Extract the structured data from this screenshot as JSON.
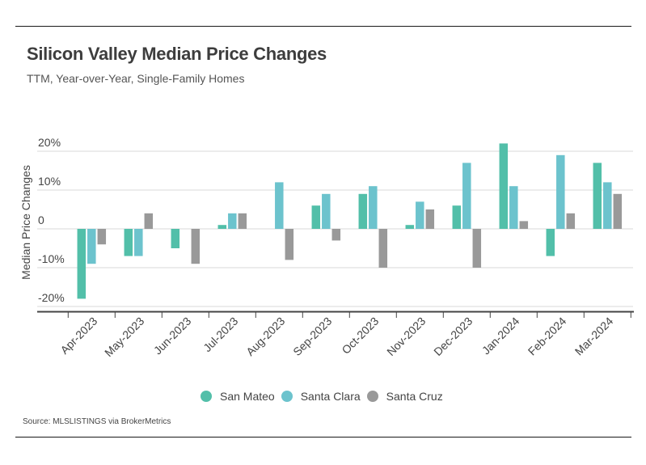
{
  "header": {
    "title": "Silicon Valley Median Price Changes",
    "subtitle": "TTM, Year-over-Year, Single-Family Homes"
  },
  "footer": {
    "source": "Source:  MLSLISTINGS via BrokerMetrics"
  },
  "chart_data": {
    "type": "bar",
    "title": "Silicon Valley Median Price Changes",
    "subtitle": "TTM, Year-over-Year, Single-Family Homes",
    "xlabel": "",
    "ylabel": "Median Price Changes",
    "ylim": [
      -20,
      20
    ],
    "yticks": [
      -20,
      -10,
      0,
      10,
      20
    ],
    "ytick_labels": [
      "-20%",
      "-10%",
      "0",
      "10%",
      "20%"
    ],
    "grid": true,
    "legend_position": "bottom-center",
    "categories": [
      "Apr-2023",
      "May-2023",
      "Jun-2023",
      "Jul-2023",
      "Aug-2023",
      "Sep-2023",
      "Oct-2023",
      "Nov-2023",
      "Dec-2023",
      "Jan-2024",
      "Feb-2024",
      "Mar-2024"
    ],
    "series": [
      {
        "name": "San Mateo",
        "color": "#52BFA9",
        "values": [
          -18,
          -7,
          -5,
          1,
          0,
          6,
          9,
          1,
          6,
          22,
          -7,
          17
        ]
      },
      {
        "name": "Santa Clara",
        "color": "#6CC3CD",
        "values": [
          -9,
          -7,
          0,
          4,
          12,
          9,
          11,
          7,
          17,
          11,
          19,
          12
        ]
      },
      {
        "name": "Santa Cruz",
        "color": "#999999",
        "values": [
          -4,
          4,
          -9,
          4,
          -8,
          -3,
          -10,
          5,
          -10,
          2,
          4,
          9
        ]
      }
    ]
  }
}
